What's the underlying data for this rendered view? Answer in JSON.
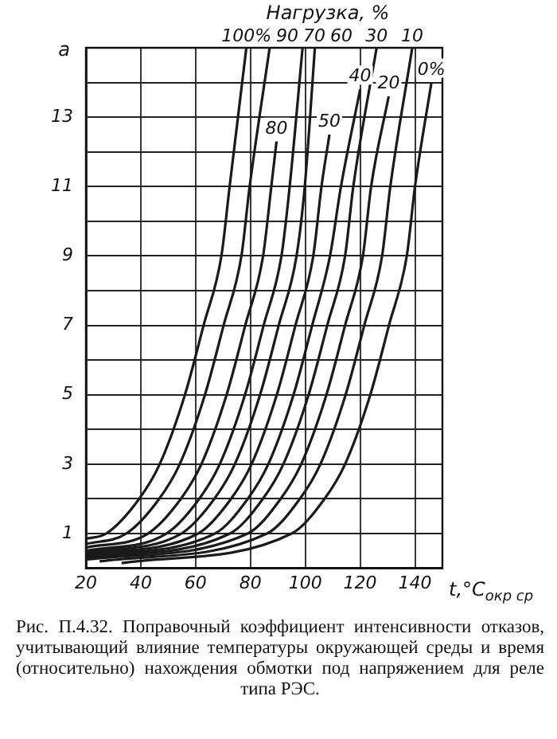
{
  "chart_data": {
    "type": "line",
    "legend_title": "Нагрузка, %",
    "xlabel": "t,°C$_{окр ср}$",
    "ylabel": "a",
    "annotations": [
      "Рис. П.4.32. Поправочный коэффициент интенсивности отказов, учитывающий влияние температуры окружающей среды и время (относительно) нахождения обмотки под напряжением для реле типа РЭС."
    ],
    "xlim": [
      20,
      150
    ],
    "ylim": [
      0,
      15
    ],
    "xticks": [
      20,
      40,
      60,
      80,
      100,
      120,
      140
    ],
    "yticks": [
      {
        "value": 1,
        "label": "1"
      },
      {
        "value": 2,
        "label": null
      },
      {
        "value": 3,
        "label": "3"
      },
      {
        "value": 4,
        "label": null
      },
      {
        "value": 5,
        "label": "5"
      },
      {
        "value": 6,
        "label": null
      },
      {
        "value": 7,
        "label": "7"
      },
      {
        "value": 8,
        "label": null
      },
      {
        "value": 9,
        "label": "9"
      },
      {
        "value": 10,
        "label": null
      },
      {
        "value": 11,
        "label": "11"
      },
      {
        "value": 12,
        "label": null
      },
      {
        "value": 13,
        "label": "13"
      },
      {
        "value": 14,
        "label": null
      }
    ],
    "grid": true,
    "marker": "none",
    "line_style": "solid",
    "series": [
      {
        "name": "100%",
        "color": "#1a1a1a",
        "x": [
          20,
          27.4,
          39.4,
          46.9,
          56.1,
          62.9,
          69.4,
          72.4,
          78.5
        ],
        "values": [
          0.85,
          1,
          2,
          3,
          5,
          7,
          9,
          11,
          15
        ]
      },
      {
        "name": "90",
        "color": "#1a1a1a",
        "x": [
          20,
          34.7,
          46.7,
          54.2,
          63.4,
          70.2,
          76.7,
          79.7,
          87
        ],
        "values": [
          0.7,
          1,
          2,
          3,
          5,
          7,
          9,
          11,
          15
        ]
      },
      {
        "name": "80",
        "color": "#1a1a1a",
        "x": [
          20,
          42.6,
          54.6,
          62.1,
          71.3,
          78.1,
          84.6,
          87.6,
          89.5
        ],
        "values": [
          0.6,
          1,
          2,
          3,
          5,
          7,
          9,
          11,
          12.3
        ]
      },
      {
        "name": "70",
        "color": "#1a1a1a",
        "x": [
          20,
          49.3,
          61.3,
          68.8,
          78,
          84.8,
          91.3,
          94.3,
          99
        ],
        "values": [
          0.5,
          1,
          2,
          3,
          5,
          7,
          9,
          11,
          15
        ]
      },
      {
        "name": "60",
        "color": "#1a1a1a",
        "x": [
          20,
          54.8,
          66.8,
          74.3,
          83.5,
          90.3,
          96.8,
          99.8,
          103.5
        ],
        "values": [
          0.45,
          1,
          2,
          3,
          5,
          7,
          9,
          11,
          15
        ]
      },
      {
        "name": "50",
        "color": "#1a1a1a",
        "x": [
          20,
          60.9,
          72.9,
          80.4,
          89.6,
          96.4,
          102.9,
          105.9,
          108.8
        ],
        "values": [
          0.4,
          1,
          2,
          3,
          5,
          7,
          9,
          11,
          12.5
        ]
      },
      {
        "name": "40",
        "color": "#1a1a1a",
        "x": [
          20,
          67,
          79,
          86.5,
          95.7,
          102.5,
          109,
          113,
          120
        ],
        "values": [
          0.35,
          1,
          2,
          3,
          5,
          7,
          9,
          11,
          13.8
        ]
      },
      {
        "name": "30",
        "color": "#1a1a1a",
        "x": [
          20,
          72.5,
          84.5,
          92,
          101.2,
          108,
          114.5,
          117.5,
          126
        ],
        "values": [
          0.3,
          1,
          2,
          3,
          5,
          7,
          9,
          11,
          15
        ]
      },
      {
        "name": "20",
        "color": "#1a1a1a",
        "x": [
          20,
          79,
          91,
          98.5,
          107.7,
          114.5,
          121,
          124,
          130.4
        ],
        "values": [
          0.25,
          1,
          2,
          3,
          5,
          7,
          9,
          11,
          13.6
        ]
      },
      {
        "name": "10",
        "color": "#1a1a1a",
        "x": [
          25,
          86,
          98,
          105.5,
          114.7,
          121.5,
          128,
          131,
          139
        ],
        "values": [
          0.2,
          1,
          2,
          3,
          5,
          7,
          9,
          11,
          15
        ]
      },
      {
        "name": "0%",
        "color": "#1a1a1a",
        "x": [
          33,
          95,
          107,
          114.5,
          123.7,
          130.5,
          137,
          140,
          146
        ],
        "values": [
          0.15,
          1,
          2,
          3,
          5,
          7,
          9,
          11,
          14
        ]
      }
    ]
  }
}
